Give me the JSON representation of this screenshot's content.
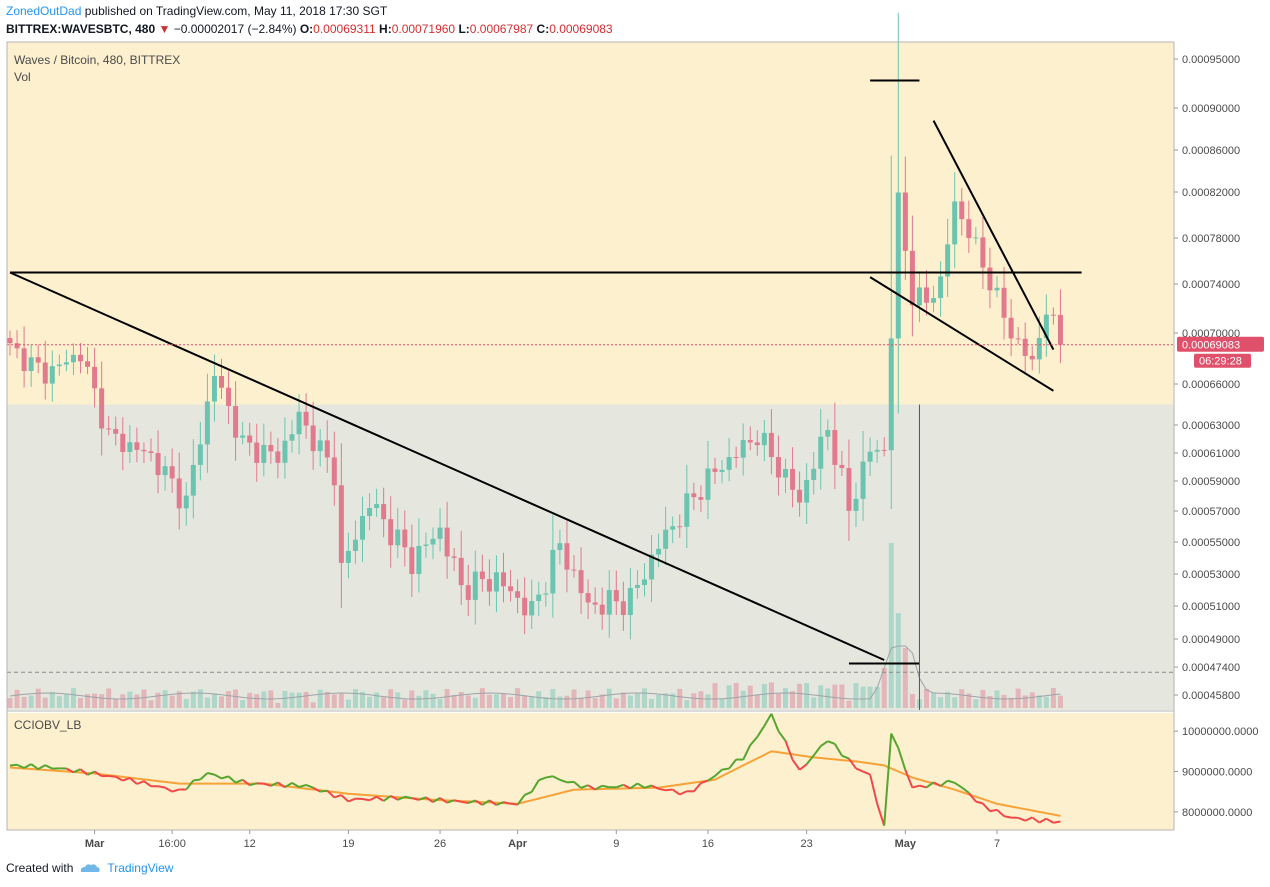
{
  "header": {
    "author": "ZonedOutDad",
    "published": "published on TradingView.com, May 11, 2018 17:30 SGT",
    "symbol": "BITTREX:WAVESBTC, 480",
    "change_arrow": "▼",
    "change": "−0.00002017 (−2.84%)",
    "o_label": "O:",
    "o_value": "0.00069311",
    "h_label": "H:",
    "h_value": "0.00071960",
    "l_label": "L:",
    "l_value": "0.00067987",
    "c_label": "C:",
    "c_value": "0.00069083"
  },
  "footer": {
    "created_with": "Created with",
    "brand": "TradingView"
  },
  "colors": {
    "up": "#6bc4b0",
    "down": "#e07a8c",
    "bg_upper": "#fdf0cf",
    "bg_lower": "#e5e7df",
    "osc_up": "#55a52e",
    "osc_down": "#f04848",
    "osc_ma": "#f7a238"
  },
  "chart_data": [
    {
      "type": "candlestick",
      "title": "Waves / Bitcoin, 480, BITTREX",
      "volume_label": "Vol",
      "y_ticks": [
        "0.00095000",
        "0.00090000",
        "0.00086000",
        "0.00082000",
        "0.00078000",
        "0.00074000",
        "0.00070000",
        "0.00066000",
        "0.00063000",
        "0.00061000",
        "0.00059000",
        "0.00057000",
        "0.00055000",
        "0.00053000",
        "0.00051000",
        "0.00049000",
        "0.00047400",
        "0.00045800"
      ],
      "y_tick_values": [
        0.00095,
        0.0009,
        0.00086,
        0.00082,
        0.00078,
        0.00074,
        0.0007,
        0.00066,
        0.00063,
        0.00061,
        0.00059,
        0.00057,
        0.00055,
        0.00053,
        0.00051,
        0.00049,
        0.000474,
        0.000458
      ],
      "last_price": "0.00069083",
      "last_price_value": 0.00069083,
      "countdown": "06:29:28",
      "x_ticks": [
        "Mar",
        "16:00",
        "12",
        "19",
        "26",
        "Apr",
        "9",
        "16",
        "23",
        "May",
        "7"
      ],
      "x_tick_index": [
        12,
        23,
        34,
        48,
        61,
        72,
        86,
        99,
        113,
        127,
        140
      ],
      "candle_count": 150,
      "shading_boundary_price": 0.000645,
      "swings": [
        [
          0,
          0.000688
        ],
        [
          5,
          0.000668
        ],
        [
          10,
          0.000684
        ],
        [
          14,
          0.000622
        ],
        [
          20,
          0.000608
        ],
        [
          25,
          0.000575
        ],
        [
          29,
          0.000668
        ],
        [
          33,
          0.000616
        ],
        [
          38,
          0.000607
        ],
        [
          41,
          0.000636
        ],
        [
          46,
          0.000596
        ],
        [
          47,
          0.000532
        ],
        [
          51,
          0.000576
        ],
        [
          57,
          0.000538
        ],
        [
          61,
          0.000558
        ],
        [
          64,
          0.000522
        ],
        [
          69,
          0.000527
        ],
        [
          74,
          0.000506
        ],
        [
          78,
          0.000548
        ],
        [
          82,
          0.00051
        ],
        [
          88,
          0.000514
        ],
        [
          92,
          0.000548
        ],
        [
          99,
          0.000592
        ],
        [
          106,
          0.000623
        ],
        [
          112,
          0.000577
        ],
        [
          116,
          0.000628
        ],
        [
          119,
          0.000571
        ],
        [
          122,
          0.000612
        ],
        [
          124,
          0.000612
        ],
        [
          125,
          0.0007
        ],
        [
          126,
          0.000812
        ],
        [
          128,
          0.00073
        ],
        [
          130,
          0.000726
        ],
        [
          132,
          0.000742
        ],
        [
          134,
          0.00081
        ],
        [
          137,
          0.000772
        ],
        [
          139,
          0.000742
        ],
        [
          142,
          0.0007
        ],
        [
          145,
          0.000676
        ],
        [
          147,
          0.00072
        ],
        [
          149,
          0.000691
        ]
      ],
      "trendlines": [
        {
          "from": [
            0,
            0.00075
          ],
          "to": [
            124,
            0.000478
          ]
        },
        {
          "from": [
            0,
            0.00075
          ],
          "to": [
            152,
            0.00075
          ]
        },
        {
          "from": [
            122,
            0.000746
          ],
          "to": [
            148,
            0.000655
          ]
        },
        {
          "from": [
            131,
            0.000888
          ],
          "to": [
            148,
            0.000687
          ]
        },
        {
          "from": [
            122,
            0.000928
          ],
          "to": [
            129,
            0.000928
          ]
        },
        {
          "from": [
            119,
            0.000476
          ],
          "to": [
            129,
            0.000476
          ]
        }
      ],
      "vertical_marker_index": 129,
      "dashed_level_price": 0.000471
    },
    {
      "type": "line",
      "title": "CCIOBV_LB",
      "y_ticks": [
        "10000000.0000",
        "9000000.0000",
        "8000000.0000"
      ],
      "y_tick_values": [
        10000000,
        9000000,
        8000000
      ],
      "series_points": [
        [
          0,
          9150000
        ],
        [
          6,
          9100000
        ],
        [
          12,
          8950000
        ],
        [
          18,
          8750000
        ],
        [
          24,
          8500000
        ],
        [
          28,
          8950000
        ],
        [
          34,
          8700000
        ],
        [
          42,
          8650000
        ],
        [
          48,
          8300000
        ],
        [
          56,
          8350000
        ],
        [
          64,
          8250000
        ],
        [
          72,
          8200000
        ],
        [
          76,
          8900000
        ],
        [
          82,
          8600000
        ],
        [
          90,
          8650000
        ],
        [
          96,
          8450000
        ],
        [
          100,
          8900000
        ],
        [
          104,
          9350000
        ],
        [
          108,
          10400000
        ],
        [
          112,
          9000000
        ],
        [
          116,
          9800000
        ],
        [
          120,
          9100000
        ],
        [
          122,
          8900000
        ],
        [
          124,
          7600000
        ],
        [
          125,
          10000000
        ],
        [
          128,
          8600000
        ],
        [
          134,
          8750000
        ],
        [
          138,
          8150000
        ],
        [
          142,
          7850000
        ],
        [
          149,
          7750000
        ]
      ],
      "ma_points": [
        [
          0,
          9100000
        ],
        [
          12,
          8950000
        ],
        [
          24,
          8700000
        ],
        [
          36,
          8700000
        ],
        [
          48,
          8450000
        ],
        [
          60,
          8300000
        ],
        [
          72,
          8200000
        ],
        [
          80,
          8550000
        ],
        [
          92,
          8600000
        ],
        [
          100,
          8800000
        ],
        [
          108,
          9500000
        ],
        [
          114,
          9350000
        ],
        [
          120,
          9250000
        ],
        [
          124,
          9150000
        ],
        [
          128,
          8850000
        ],
        [
          134,
          8550000
        ],
        [
          140,
          8200000
        ],
        [
          149,
          7900000
        ]
      ]
    }
  ]
}
